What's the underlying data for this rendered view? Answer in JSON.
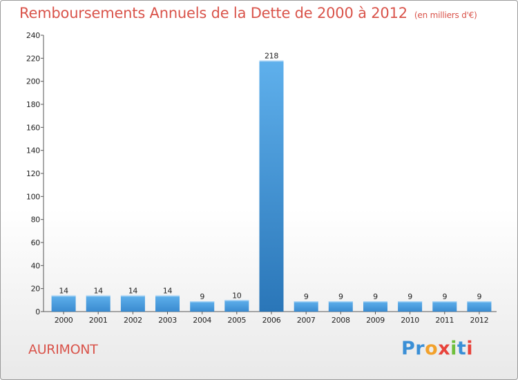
{
  "header": {
    "title": "Remboursements Annuels de la Dette de 2000 à 2012",
    "subtitle": "(en milliers d'€)"
  },
  "commune": "AURIMONT",
  "logo": {
    "letters": [
      "P",
      "r",
      "o",
      "x",
      "i",
      "t",
      "i"
    ]
  },
  "chart_data": {
    "type": "bar",
    "title": "Remboursements Annuels de la Dette de 2000 à 2012",
    "subtitle": "(en milliers d'€)",
    "categories": [
      "2000",
      "2001",
      "2002",
      "2003",
      "2004",
      "2005",
      "2006",
      "2007",
      "2008",
      "2009",
      "2010",
      "2011",
      "2012"
    ],
    "values": [
      14,
      14,
      14,
      14,
      9,
      10,
      218,
      9,
      9,
      9,
      9,
      9,
      9
    ],
    "ylim": [
      0,
      240
    ],
    "yticks": [
      0,
      20,
      40,
      60,
      80,
      100,
      120,
      140,
      160,
      180,
      200,
      220,
      240
    ],
    "grid": false,
    "legend": "none",
    "bar_color": "#3d8fd1"
  }
}
